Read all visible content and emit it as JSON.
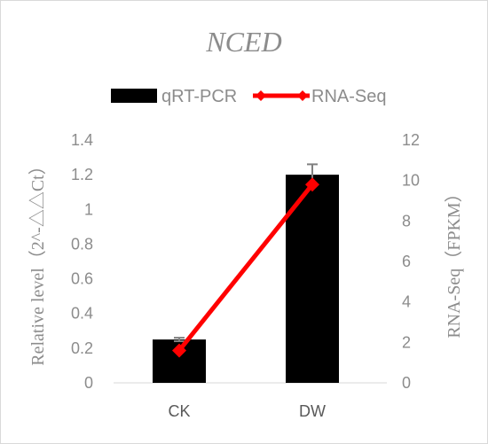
{
  "chart_data": {
    "type": "bar",
    "title": "NCED",
    "categories": [
      "CK",
      "DW"
    ],
    "legend_position": "top",
    "grid": false,
    "y_left": {
      "label": "Relative level（2^-△△Ct）",
      "ylim": [
        0,
        1.4
      ],
      "ticks": [
        "0",
        "0.2",
        "0.4",
        "0.6",
        "0.8",
        "1",
        "1.2",
        "1.4"
      ]
    },
    "y_right": {
      "label": "RNA-Seq（FPKM）",
      "ylim": [
        0,
        12
      ],
      "ticks": [
        "0",
        "2",
        "4",
        "6",
        "8",
        "10",
        "12"
      ]
    },
    "series": [
      {
        "name": "qRT-PCR",
        "type": "bar",
        "axis": "left",
        "color": "#000000",
        "values": [
          0.25,
          1.2
        ],
        "error": [
          0.01,
          0.06
        ]
      },
      {
        "name": "RNA-Seq",
        "type": "line",
        "axis": "right",
        "color": "#ff0000",
        "marker": "diamond",
        "values": [
          1.6,
          9.8
        ]
      }
    ]
  }
}
